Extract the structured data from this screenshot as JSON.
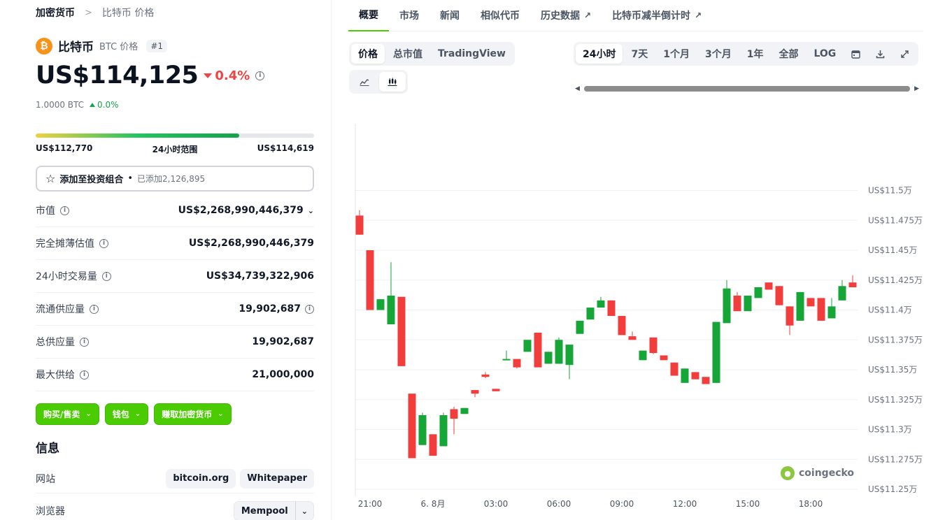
{
  "breadcrumb": {
    "root": "加密货币",
    "sep": ">",
    "current": "比特币 价格"
  },
  "coin": {
    "logo_glyph": "₿",
    "name": "比特币",
    "symbol_label": "BTC 价格",
    "rank": "#1",
    "price": "US$114,125",
    "change_24h": "0.4%",
    "btc_value": "1.0000 BTC",
    "btc_change": "0.0%"
  },
  "range": {
    "low": "US$112,770",
    "label": "24小时范围",
    "high": "US$114,619",
    "position_fraction": 0.73
  },
  "portfolio": {
    "label": "添加至投资组合",
    "dot": "•",
    "added": "已添加2,126,895"
  },
  "stats": [
    {
      "label": "市值",
      "value": "US$2,268,990,446,379"
    },
    {
      "label": "完全摊薄估值",
      "value": "US$2,268,990,446,379"
    },
    {
      "label": "24小时交易量",
      "value": "US$34,739,322,906"
    },
    {
      "label": "流通供应量",
      "value": "19,902,687"
    },
    {
      "label": "总供应量",
      "value": "19,902,687"
    },
    {
      "label": "最大供给",
      "value": "21,000,000"
    }
  ],
  "actions": {
    "buy_sell": "购买/售卖",
    "wallet": "钱包",
    "earn": "赚取加密货币"
  },
  "info": {
    "heading": "信息",
    "website_label": "网站",
    "website_links": [
      "bitcoin.org",
      "Whitepaper"
    ],
    "explorer_label": "浏览器",
    "explorer_value": "Mempool"
  },
  "tabs": [
    "概要",
    "市场",
    "新闻",
    "相似代币",
    "历史数据",
    "比特币减半倒计时"
  ],
  "view_modes": [
    "价格",
    "总市值",
    "TradingView"
  ],
  "time_ranges": [
    "24小时",
    "7天",
    "1个月",
    "3个月",
    "1年",
    "全部",
    "LOG"
  ],
  "watermark": "coingecko",
  "colors": {
    "accent": "#4bcc00",
    "up": "#16a34a",
    "down": "#ef4444",
    "candle_up": "#16a637",
    "candle_down": "#f23d3d"
  },
  "chart_data": {
    "type": "candlestick",
    "ylim": [
      112500,
      115500
    ],
    "yticks": [
      {
        "v": 115000,
        "label": "US$11.5万"
      },
      {
        "v": 114750,
        "label": "US$11.475万"
      },
      {
        "v": 114500,
        "label": "US$11.45万"
      },
      {
        "v": 114250,
        "label": "US$11.425万"
      },
      {
        "v": 114000,
        "label": "US$11.4万"
      },
      {
        "v": 113750,
        "label": "US$11.375万"
      },
      {
        "v": 113500,
        "label": "US$11.35万"
      },
      {
        "v": 113250,
        "label": "US$11.325万"
      },
      {
        "v": 113000,
        "label": "US$11.3万"
      },
      {
        "v": 112750,
        "label": "US$11.275万"
      },
      {
        "v": 112500,
        "label": "US$11.25万"
      }
    ],
    "xticks": [
      {
        "i": 1,
        "label": "21:00"
      },
      {
        "i": 7,
        "label": "6. 8月"
      },
      {
        "i": 13,
        "label": "03:00"
      },
      {
        "i": 19,
        "label": "06:00"
      },
      {
        "i": 25,
        "label": "09:00"
      },
      {
        "i": 31,
        "label": "12:00"
      },
      {
        "i": 37,
        "label": "15:00"
      },
      {
        "i": 43,
        "label": "18:00"
      }
    ],
    "candles": [
      {
        "o": 114790,
        "h": 114835,
        "l": 114630,
        "c": 114630
      },
      {
        "o": 114500,
        "h": 114500,
        "l": 114000,
        "c": 114000
      },
      {
        "o": 114000,
        "h": 114090,
        "l": 114000,
        "c": 114090
      },
      {
        "o": 113880,
        "h": 114400,
        "l": 113880,
        "c": 114120
      },
      {
        "o": 114110,
        "h": 114110,
        "l": 113530,
        "c": 113530
      },
      {
        "o": 113300,
        "h": 113300,
        "l": 112760,
        "c": 112760
      },
      {
        "o": 112870,
        "h": 113140,
        "l": 112870,
        "c": 113120
      },
      {
        "o": 112960,
        "h": 112960,
        "l": 112780,
        "c": 112780
      },
      {
        "o": 112860,
        "h": 113140,
        "l": 112860,
        "c": 113120
      },
      {
        "o": 113170,
        "h": 113190,
        "l": 112960,
        "c": 113090
      },
      {
        "o": 113130,
        "h": 113180,
        "l": 113130,
        "c": 113180
      },
      {
        "o": 113330,
        "h": 113330,
        "l": 113270,
        "c": 113300
      },
      {
        "o": 113460,
        "h": 113480,
        "l": 113430,
        "c": 113440
      },
      {
        "o": 113340,
        "h": 113340,
        "l": 113320,
        "c": 113320
      },
      {
        "o": 113580,
        "h": 113660,
        "l": 113580,
        "c": 113590
      },
      {
        "o": 113590,
        "h": 113590,
        "l": 113510,
        "c": 113520
      },
      {
        "o": 113650,
        "h": 113750,
        "l": 113650,
        "c": 113750
      },
      {
        "o": 113810,
        "h": 113810,
        "l": 113520,
        "c": 113520
      },
      {
        "o": 113550,
        "h": 113650,
        "l": 113550,
        "c": 113650
      },
      {
        "o": 113550,
        "h": 113770,
        "l": 113550,
        "c": 113750
      },
      {
        "o": 113540,
        "h": 113710,
        "l": 113420,
        "c": 113710
      },
      {
        "o": 113800,
        "h": 113910,
        "l": 113800,
        "c": 113910
      },
      {
        "o": 113920,
        "h": 114020,
        "l": 113920,
        "c": 114020
      },
      {
        "o": 114020,
        "h": 114110,
        "l": 114020,
        "c": 114080
      },
      {
        "o": 114080,
        "h": 114080,
        "l": 113950,
        "c": 113950
      },
      {
        "o": 113950,
        "h": 113950,
        "l": 113790,
        "c": 113790
      },
      {
        "o": 113780,
        "h": 113820,
        "l": 113750,
        "c": 113750
      },
      {
        "o": 113580,
        "h": 113660,
        "l": 113580,
        "c": 113660
      },
      {
        "o": 113770,
        "h": 113770,
        "l": 113630,
        "c": 113640
      },
      {
        "o": 113620,
        "h": 113620,
        "l": 113590,
        "c": 113580
      },
      {
        "o": 113560,
        "h": 113560,
        "l": 113450,
        "c": 113450
      },
      {
        "o": 113390,
        "h": 113510,
        "l": 113390,
        "c": 113510
      },
      {
        "o": 113480,
        "h": 113480,
        "l": 113420,
        "c": 113420
      },
      {
        "o": 113440,
        "h": 113440,
        "l": 113380,
        "c": 113380
      },
      {
        "o": 113390,
        "h": 113900,
        "l": 113390,
        "c": 113900
      },
      {
        "o": 113890,
        "h": 114250,
        "l": 113890,
        "c": 114180
      },
      {
        "o": 114120,
        "h": 114150,
        "l": 113990,
        "c": 113990
      },
      {
        "o": 113990,
        "h": 114120,
        "l": 113990,
        "c": 114120
      },
      {
        "o": 114100,
        "h": 114190,
        "l": 114100,
        "c": 114190
      },
      {
        "o": 114230,
        "h": 114230,
        "l": 114170,
        "c": 114170
      },
      {
        "o": 114200,
        "h": 114200,
        "l": 114040,
        "c": 114040
      },
      {
        "o": 114030,
        "h": 114030,
        "l": 113790,
        "c": 113870
      },
      {
        "o": 113910,
        "h": 114150,
        "l": 113910,
        "c": 114150
      },
      {
        "o": 114100,
        "h": 114100,
        "l": 114030,
        "c": 114030
      },
      {
        "o": 114100,
        "h": 114100,
        "l": 113910,
        "c": 113910
      },
      {
        "o": 113930,
        "h": 114100,
        "l": 113930,
        "c": 114030
      },
      {
        "o": 114080,
        "h": 114250,
        "l": 114080,
        "c": 114200
      },
      {
        "o": 114230,
        "h": 114290,
        "l": 114190,
        "c": 114190
      }
    ]
  }
}
